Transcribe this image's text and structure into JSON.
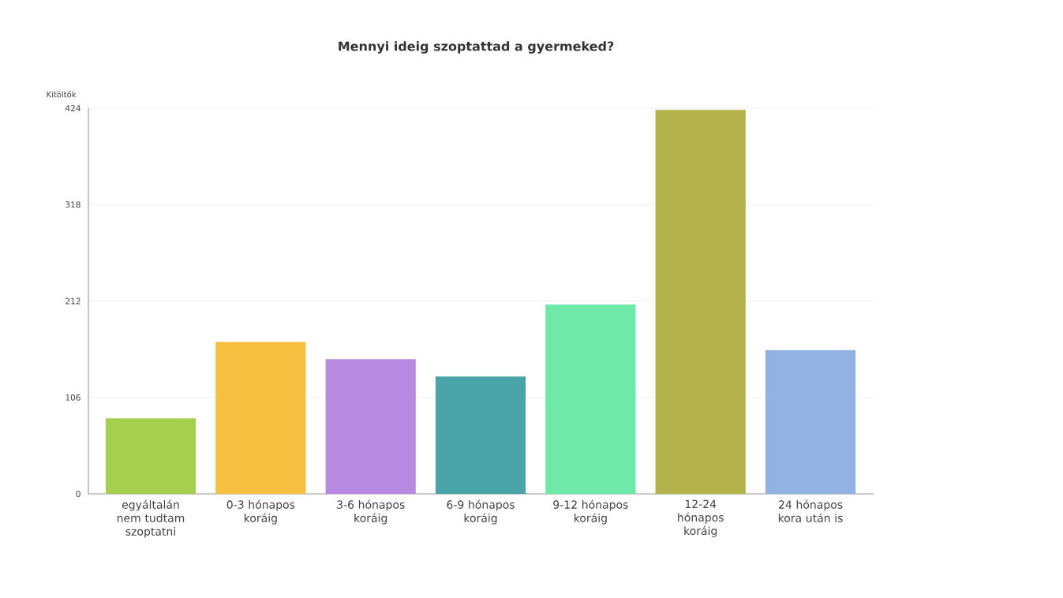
{
  "chart_data": {
    "type": "bar",
    "title": "Mennyi ideig szoptattad a gyermeked?",
    "ylabel": "Kitöltők",
    "categories": [
      "egyáltalán nem tudtam szoptatni",
      "0-3 hónapos koráig",
      "3-6 hónapos koráig",
      "6-9 hónapos koráig",
      "9-12 hónapos koráig",
      "12-24 hónapos koráig",
      "24 hónapos kora után is"
    ],
    "values": [
      83,
      167,
      148,
      129,
      208,
      422,
      158
    ],
    "colors": [
      "#a6cf4f",
      "#f5c040",
      "#b889e0",
      "#4aa5a8",
      "#6ee9a8",
      "#b4b24a",
      "#92b2e3"
    ],
    "ylim": [
      0,
      424
    ],
    "yticks": [
      0,
      106,
      212,
      318,
      424
    ],
    "grid": "y"
  }
}
